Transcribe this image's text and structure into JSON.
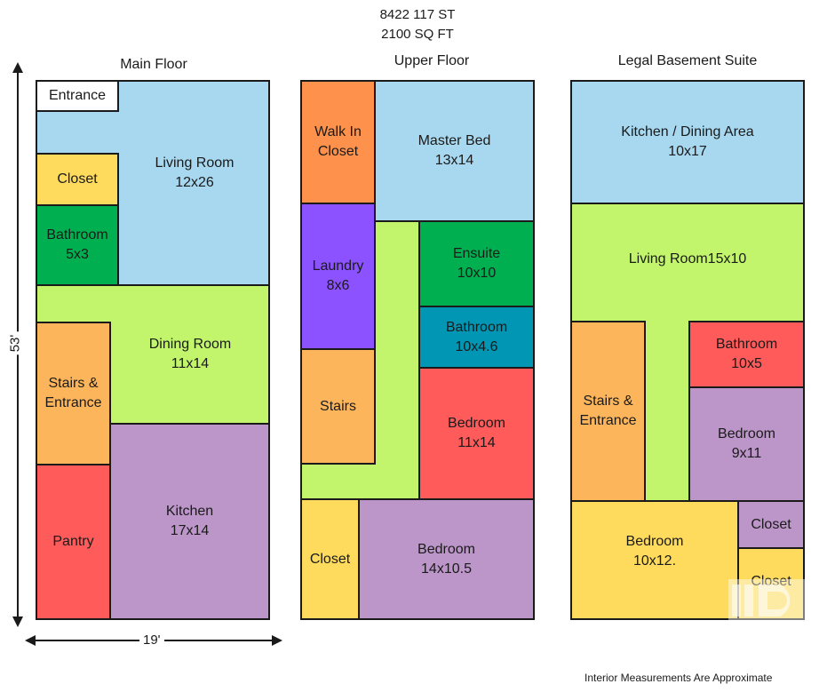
{
  "header": {
    "address": "8422 117 ST",
    "area": "2100 SQ FT"
  },
  "floors": {
    "main": {
      "title": "Main Floor",
      "rooms": {
        "entrance": {
          "name": "Entrance"
        },
        "living": {
          "name": "Living Room",
          "dims": "12x26"
        },
        "closet": {
          "name": "Closet"
        },
        "bathroom": {
          "name": "Bathroom",
          "dims": "5x3"
        },
        "dining": {
          "name": "Dining Room",
          "dims": "11x14"
        },
        "stairs": {
          "name": "Stairs & Entrance"
        },
        "pantry": {
          "name": "Pantry"
        },
        "kitchen": {
          "name": "Kitchen",
          "dims": "17x14"
        }
      }
    },
    "upper": {
      "title": "Upper Floor",
      "rooms": {
        "walkin": {
          "name": "Walk In Closet"
        },
        "master": {
          "name": "Master Bed",
          "dims": "13x14"
        },
        "laundry": {
          "name": "Laundry",
          "dims": "8x6"
        },
        "ensuite": {
          "name": "Ensuite",
          "dims": "10x10"
        },
        "bathroom": {
          "name": "Bathroom",
          "dims": "10x4.6"
        },
        "stairs": {
          "name": "Stairs"
        },
        "bedroom1": {
          "name": "Bedroom",
          "dims": "11x14"
        },
        "closet": {
          "name": "Closet"
        },
        "bedroom2": {
          "name": "Bedroom",
          "dims": "14x10.5"
        }
      }
    },
    "basement": {
      "title": "Legal Basement Suite",
      "rooms": {
        "kitchen": {
          "name": "Kitchen / Dining Area",
          "dims": "10x17"
        },
        "living": {
          "name": "Living Room15x10"
        },
        "stairs": {
          "name": "Stairs & Entrance"
        },
        "bathroom": {
          "name": "Bathroom",
          "dims": "10x5"
        },
        "bedroom1": {
          "name": "Bedroom",
          "dims": "9x11"
        },
        "bedroom2": {
          "name": "Bedroom",
          "dims": "10x12."
        },
        "closet1": {
          "name": "Closet"
        },
        "closet2": {
          "name": "Closet"
        }
      }
    }
  },
  "dimensions": {
    "height": "53'",
    "width": "19'"
  },
  "footer": {
    "note": "Interior Measurements Are Approximate"
  },
  "colors": {
    "blue": "#a8d8f0",
    "green_light": "#c2f56c",
    "yellow": "#fedb5c",
    "green": "#00b050",
    "orange": "#fdb55c",
    "red": "#fe5b5a",
    "purple": "#bc95c9",
    "orange_dark": "#fe914b",
    "violet": "#8c52ff",
    "teal": "#0096b4"
  }
}
